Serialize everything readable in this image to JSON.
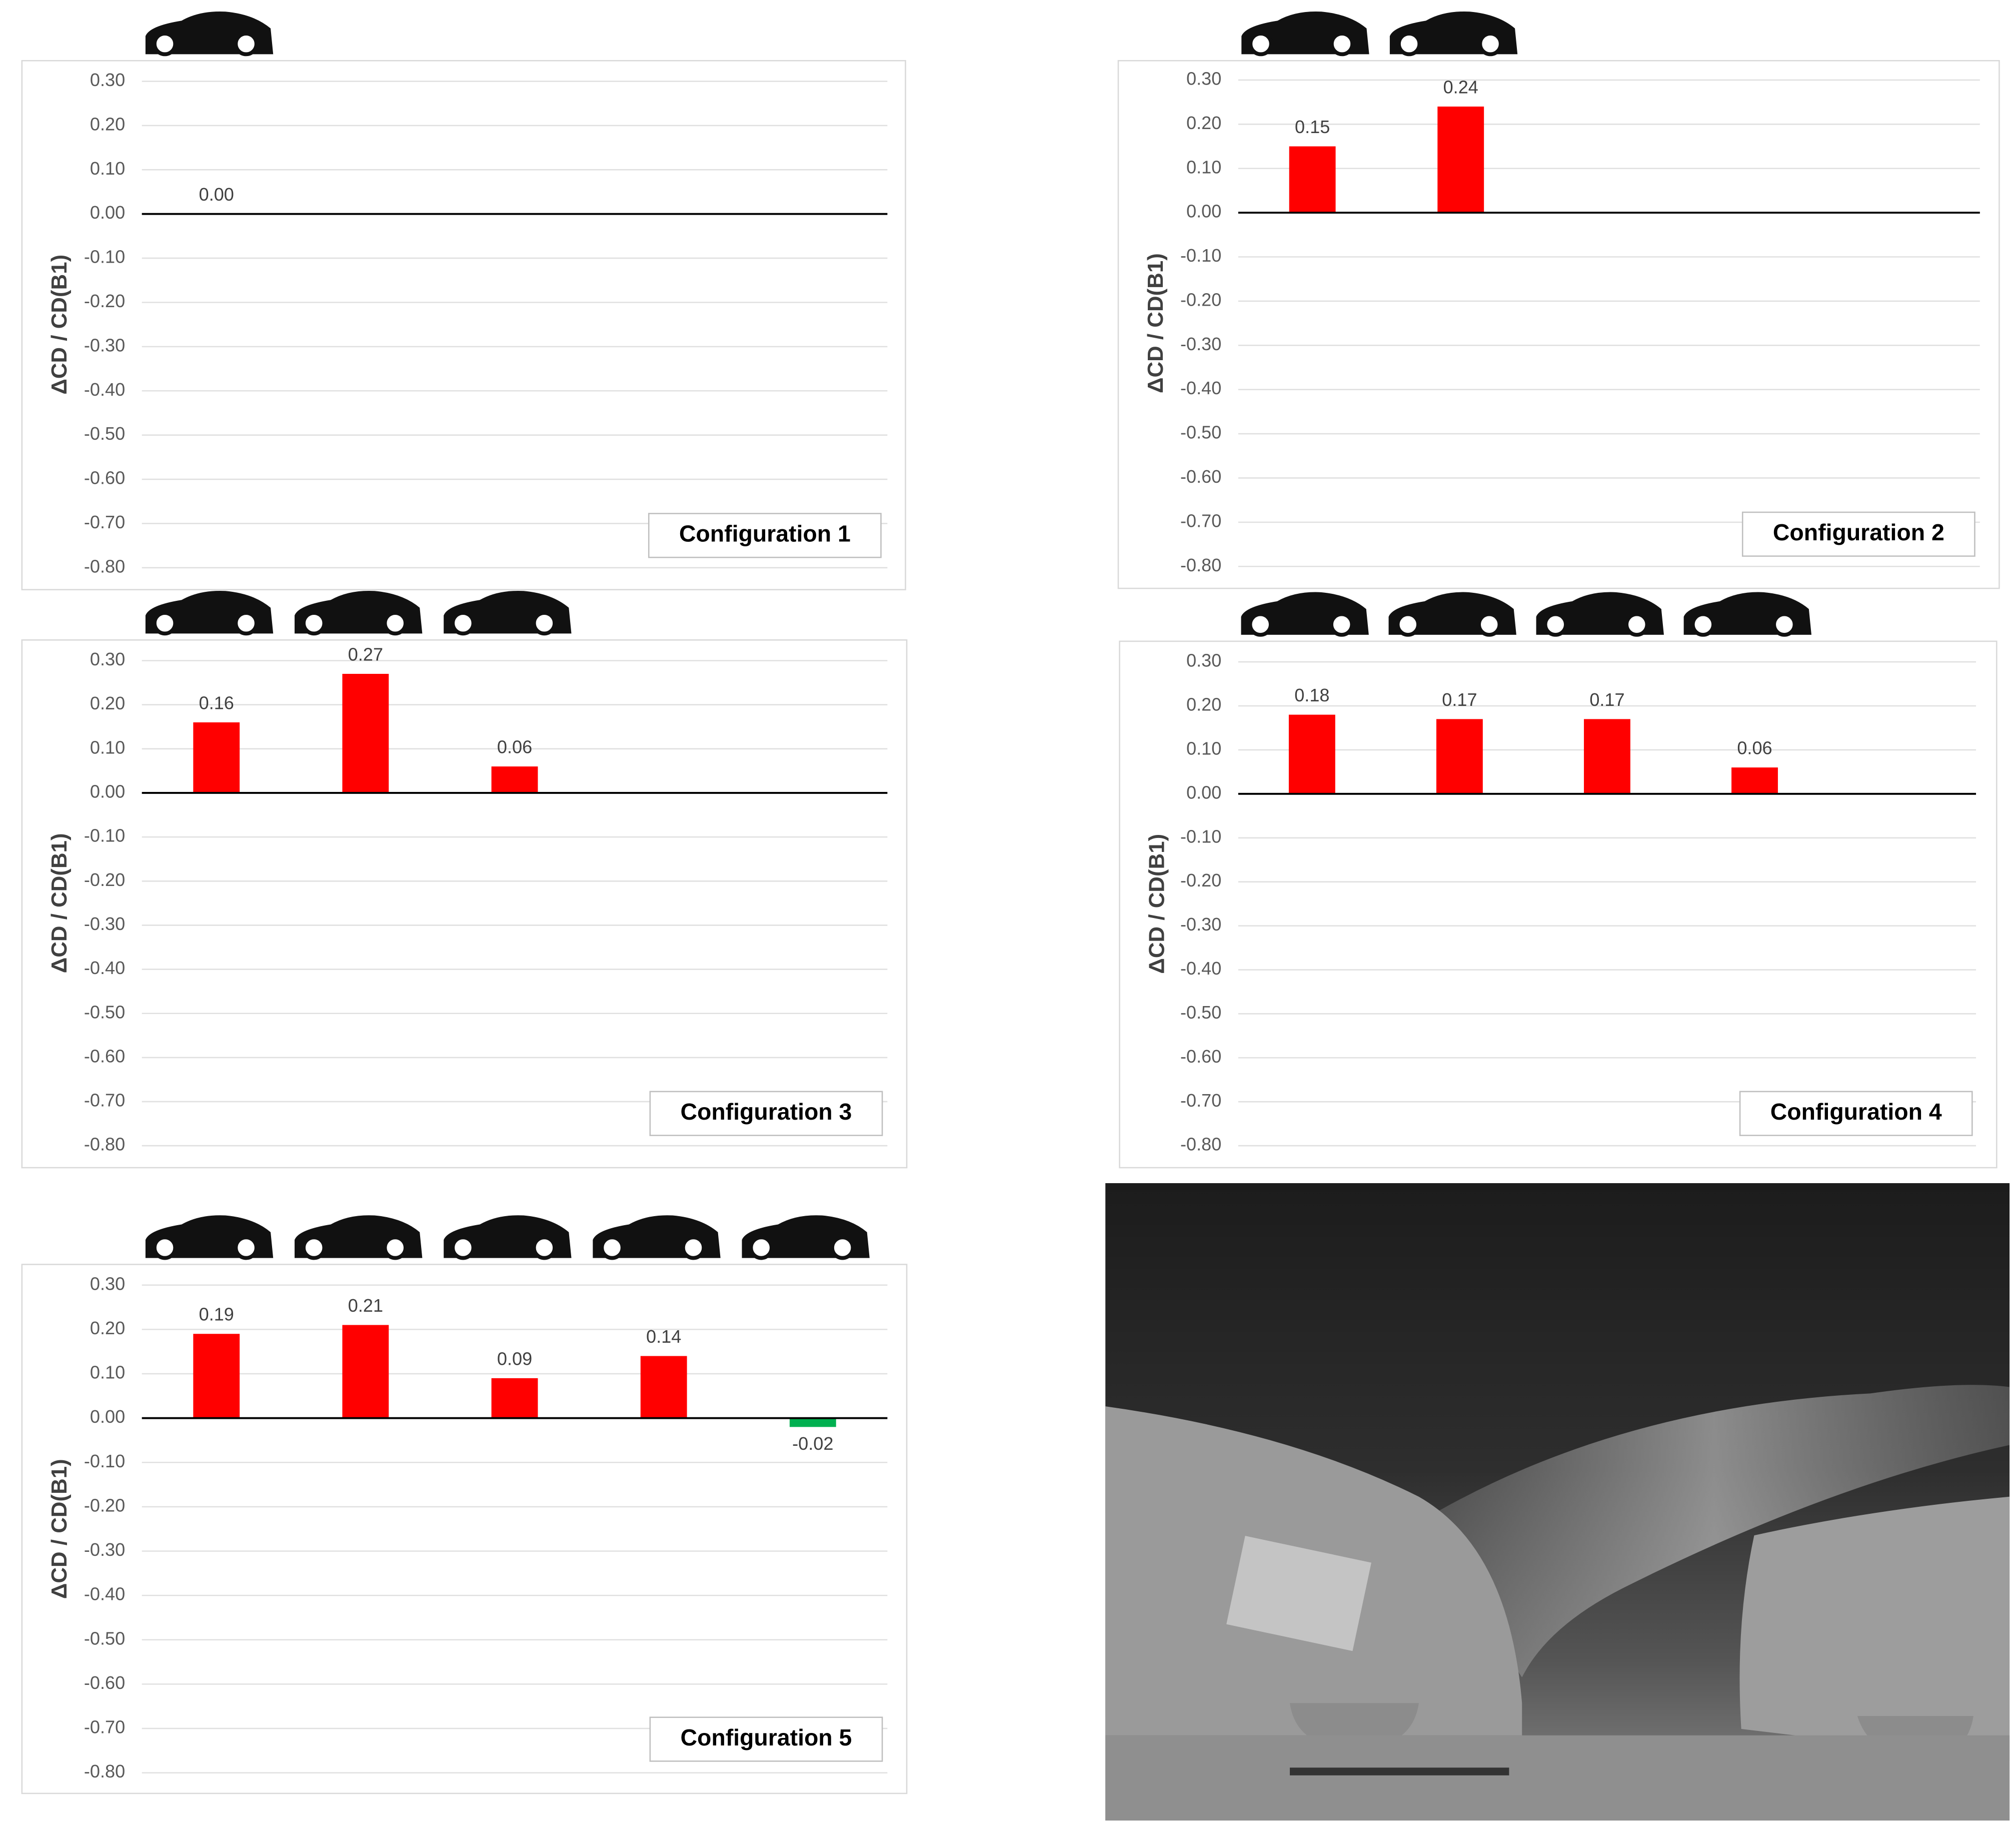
{
  "chart_data": [
    {
      "type": "bar",
      "ylabel": "ΔCD / CD(B1)",
      "annotation": "Configuration 1",
      "categories": [
        null
      ],
      "values": [
        0
      ],
      "value_labels": [
        "0.00"
      ],
      "colors": [
        "#ff0000"
      ],
      "ylim": [
        -0.8,
        0.3
      ],
      "grid": true,
      "yticks": [
        {
          "value": 0.3,
          "label": "0.30"
        },
        {
          "value": 0.2,
          "label": "0.20"
        },
        {
          "value": 0.1,
          "label": "0.10"
        },
        {
          "value": 0,
          "label": "0.00"
        },
        {
          "value": -0.1,
          "label": "-0.10"
        },
        {
          "value": -0.2,
          "label": "-0.20"
        },
        {
          "value": -0.3,
          "label": "-0.30"
        },
        {
          "value": -0.4,
          "label": "-0.40"
        },
        {
          "value": -0.5,
          "label": "-0.50"
        },
        {
          "value": -0.6,
          "label": "-0.60"
        },
        {
          "value": -0.7,
          "label": "-0.70"
        },
        {
          "value": -0.8,
          "label": "-0.80"
        }
      ]
    },
    {
      "type": "bar",
      "ylabel": "ΔCD / CD(B1)",
      "annotation": "Configuration 2",
      "categories": [
        null,
        null
      ],
      "values": [
        0.15,
        0.24
      ],
      "value_labels": [
        "0.15",
        "0.24"
      ],
      "colors": [
        "#ff0000",
        "#ff0000"
      ],
      "ylim": [
        -0.8,
        0.3
      ],
      "grid": true,
      "yticks": [
        {
          "value": 0.3,
          "label": "0.30"
        },
        {
          "value": 0.2,
          "label": "0.20"
        },
        {
          "value": 0.1,
          "label": "0.10"
        },
        {
          "value": 0,
          "label": "0.00"
        },
        {
          "value": -0.1,
          "label": "-0.10"
        },
        {
          "value": -0.2,
          "label": "-0.20"
        },
        {
          "value": -0.3,
          "label": "-0.30"
        },
        {
          "value": -0.4,
          "label": "-0.40"
        },
        {
          "value": -0.5,
          "label": "-0.50"
        },
        {
          "value": -0.6,
          "label": "-0.60"
        },
        {
          "value": -0.7,
          "label": "-0.70"
        },
        {
          "value": -0.8,
          "label": "-0.80"
        }
      ]
    },
    {
      "type": "bar",
      "ylabel": "ΔCD / CD(B1)",
      "annotation": "Configuration 3",
      "categories": [
        null,
        null,
        null
      ],
      "values": [
        0.16,
        0.27,
        0.06
      ],
      "value_labels": [
        "0.16",
        "0.27",
        "0.06"
      ],
      "colors": [
        "#ff0000",
        "#ff0000",
        "#ff0000"
      ],
      "ylim": [
        -0.8,
        0.3
      ],
      "grid": true,
      "yticks": [
        {
          "value": 0.3,
          "label": "0.30"
        },
        {
          "value": 0.2,
          "label": "0.20"
        },
        {
          "value": 0.1,
          "label": "0.10"
        },
        {
          "value": 0,
          "label": "0.00"
        },
        {
          "value": -0.1,
          "label": "-0.10"
        },
        {
          "value": -0.2,
          "label": "-0.20"
        },
        {
          "value": -0.3,
          "label": "-0.30"
        },
        {
          "value": -0.4,
          "label": "-0.40"
        },
        {
          "value": -0.5,
          "label": "-0.50"
        },
        {
          "value": -0.6,
          "label": "-0.60"
        },
        {
          "value": -0.7,
          "label": "-0.70"
        },
        {
          "value": -0.8,
          "label": "-0.80"
        }
      ]
    },
    {
      "type": "bar",
      "ylabel": "ΔCD / CD(B1)",
      "annotation": "Configuration 4",
      "categories": [
        null,
        null,
        null,
        null
      ],
      "values": [
        0.18,
        0.17,
        0.17,
        0.06
      ],
      "value_labels": [
        "0.18",
        "0.17",
        "0.17",
        "0.06"
      ],
      "colors": [
        "#ff0000",
        "#ff0000",
        "#ff0000",
        "#ff0000"
      ],
      "ylim": [
        -0.8,
        0.3
      ],
      "grid": true,
      "yticks": [
        {
          "value": 0.3,
          "label": "0.30"
        },
        {
          "value": 0.2,
          "label": "0.20"
        },
        {
          "value": 0.1,
          "label": "0.10"
        },
        {
          "value": 0,
          "label": "0.00"
        },
        {
          "value": -0.1,
          "label": "-0.10"
        },
        {
          "value": -0.2,
          "label": "-0.20"
        },
        {
          "value": -0.3,
          "label": "-0.30"
        },
        {
          "value": -0.4,
          "label": "-0.40"
        },
        {
          "value": -0.5,
          "label": "-0.50"
        },
        {
          "value": -0.6,
          "label": "-0.60"
        },
        {
          "value": -0.7,
          "label": "-0.70"
        },
        {
          "value": -0.8,
          "label": "-0.80"
        }
      ]
    },
    {
      "type": "bar",
      "ylabel": "ΔCD / CD(B1)",
      "annotation": "Configuration 5",
      "categories": [
        null,
        null,
        null,
        null,
        null
      ],
      "values": [
        0.19,
        0.21,
        0.09,
        0.14,
        -0.02
      ],
      "value_labels": [
        "0.19",
        "0.21",
        "0.09",
        "0.14",
        "-0.02"
      ],
      "colors": [
        "#ff0000",
        "#ff0000",
        "#ff0000",
        "#ff0000",
        "#00b050"
      ],
      "ylim": [
        -0.8,
        0.3
      ],
      "grid": true,
      "yticks": [
        {
          "value": 0.3,
          "label": "0.30"
        },
        {
          "value": 0.2,
          "label": "0.20"
        },
        {
          "value": 0.1,
          "label": "0.10"
        },
        {
          "value": 0,
          "label": "0.00"
        },
        {
          "value": -0.1,
          "label": "-0.10"
        },
        {
          "value": -0.2,
          "label": "-0.20"
        },
        {
          "value": -0.3,
          "label": "-0.30"
        },
        {
          "value": -0.4,
          "label": "-0.40"
        },
        {
          "value": -0.5,
          "label": "-0.50"
        },
        {
          "value": -0.6,
          "label": "-0.60"
        },
        {
          "value": -0.7,
          "label": "-0.70"
        },
        {
          "value": -0.8,
          "label": "-0.80"
        }
      ]
    }
  ]
}
